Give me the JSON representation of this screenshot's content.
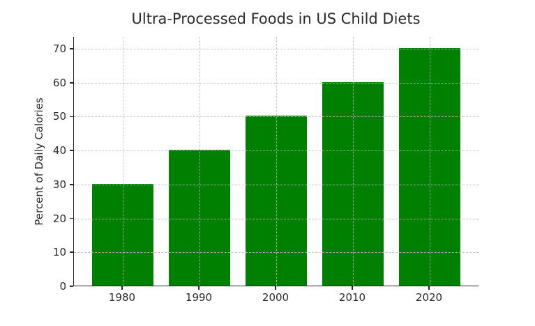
{
  "figure": {
    "title": "Ultra-Processed Foods in US Child Diets"
  },
  "chart_data": {
    "type": "bar",
    "categories": [
      "1980",
      "1990",
      "2000",
      "2010",
      "2020"
    ],
    "values": [
      30,
      40,
      50,
      60,
      70
    ],
    "title": "Ultra-Processed Foods in US Child Diets",
    "xlabel": "",
    "ylabel": "Percent of Daily Calories",
    "ylim": [
      0,
      73.5
    ],
    "yticks": [
      0,
      10,
      20,
      30,
      40,
      50,
      60,
      70
    ],
    "grid": "dashed gridlines on both axes, drawn above bars",
    "legend": "none",
    "colors": {
      "bar": "#008000",
      "grid": "#c8c8c8",
      "text": "#2b2b2b",
      "axis": "#262626",
      "background": "#ffffff"
    }
  }
}
